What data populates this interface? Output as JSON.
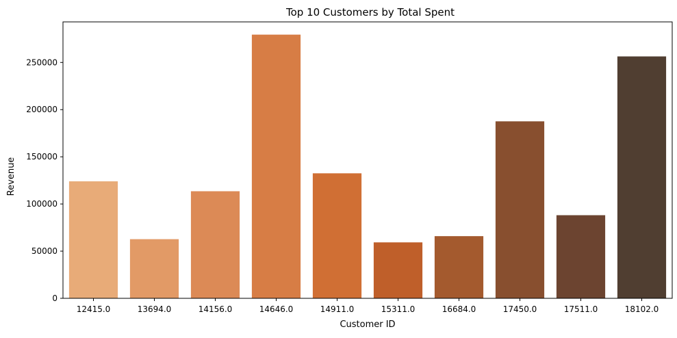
{
  "chart_data": {
    "type": "bar",
    "title": "Top 10 Customers by Total Spent",
    "xlabel": "Customer ID",
    "ylabel": "Revenue",
    "categories": [
      "12415.0",
      "13694.0",
      "14156.0",
      "14646.0",
      "14911.0",
      "15311.0",
      "16684.0",
      "17450.0",
      "17511.0",
      "18102.0"
    ],
    "values": [
      124000,
      62700,
      113500,
      279500,
      132500,
      59300,
      65900,
      187600,
      88100,
      256400
    ],
    "colors": [
      "#e8ab78",
      "#e29a66",
      "#dc8a56",
      "#d77d45",
      "#d06f34",
      "#bf5f2a",
      "#a45a2e",
      "#884f2f",
      "#6c4430",
      "#503e31"
    ],
    "ylim": [
      0,
      293000
    ],
    "yticks": [
      0,
      50000,
      100000,
      150000,
      200000,
      250000
    ],
    "grid": false,
    "legend": "none"
  }
}
